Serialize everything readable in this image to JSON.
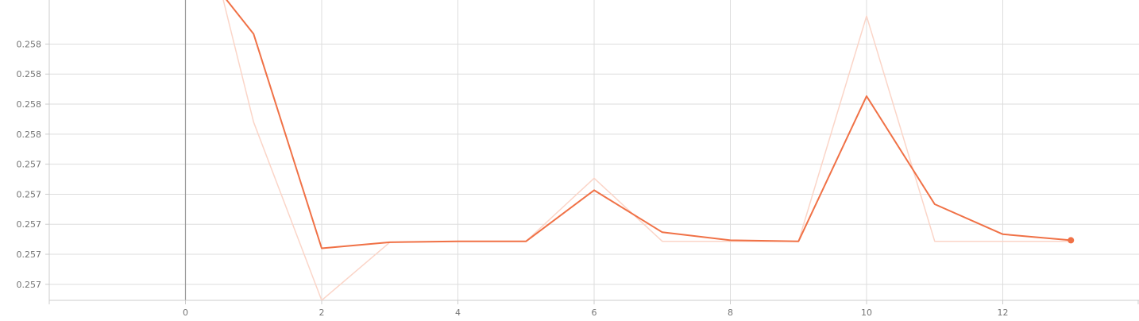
{
  "chart_data": {
    "type": "line",
    "title": "",
    "xlabel": "",
    "ylabel": "",
    "xlim": [
      -2,
      14
    ],
    "ylim": [
      0.25674,
      0.25824
    ],
    "x_ticks": [
      0,
      2,
      4,
      6,
      8,
      10,
      12
    ],
    "y_ticks": [
      {
        "value": 0.25682,
        "label": "0.257"
      },
      {
        "value": 0.25697,
        "label": "0.257"
      },
      {
        "value": 0.25712,
        "label": "0.257"
      },
      {
        "value": 0.25727,
        "label": "0.257"
      },
      {
        "value": 0.25742,
        "label": "0.257"
      },
      {
        "value": 0.25757,
        "label": "0.258"
      },
      {
        "value": 0.25772,
        "label": "0.258"
      },
      {
        "value": 0.25787,
        "label": "0.258"
      },
      {
        "value": 0.25802,
        "label": "0.258"
      }
    ],
    "grid": true,
    "colors": {
      "smoothed": "#f07146",
      "raw": "#fbd5c8",
      "grid": "#dddddd",
      "axis": "#cccccc",
      "zero_line": "#999999"
    },
    "series": [
      {
        "role": "smoothed",
        "x": [
          0,
          1,
          2,
          3,
          4,
          5,
          6,
          7,
          8,
          9,
          10,
          11,
          12,
          13
        ],
        "y": [
          0.2585,
          0.25807,
          0.257,
          0.25703,
          0.257035,
          0.257035,
          0.25729,
          0.25708,
          0.25704,
          0.257035,
          0.25776,
          0.25722,
          0.25707,
          0.25704
        ]
      },
      {
        "role": "raw",
        "x": [
          0,
          1,
          2,
          3,
          4,
          5,
          6,
          7,
          8,
          9,
          10,
          11,
          12,
          13
        ],
        "y": [
          0.259,
          0.25763,
          0.25674,
          0.25703,
          0.257035,
          0.257035,
          0.25735,
          0.257035,
          0.257035,
          0.257035,
          0.25816,
          0.257035,
          0.257035,
          0.257035
        ]
      }
    ],
    "last_point_marker": true
  }
}
